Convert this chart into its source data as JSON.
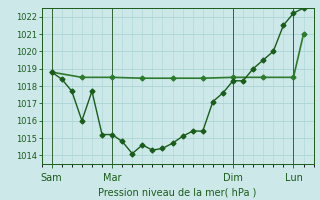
{
  "title": "",
  "xlabel": "Pression niveau de la mer( hPa )",
  "bg_color": "#cce8e8",
  "grid_color": "#aad4d4",
  "line_color_main": "#1a5c1a",
  "line_color_flat": "#2d7a2d",
  "ylim": [
    1013.5,
    1022.5
  ],
  "yticks": [
    1014,
    1015,
    1016,
    1017,
    1018,
    1019,
    1020,
    1021,
    1022
  ],
  "xlim": [
    0,
    27
  ],
  "day_positions": [
    1,
    7,
    19,
    25
  ],
  "day_labels": [
    "Sam",
    "Mar",
    "Dim",
    "Lun"
  ],
  "series1_x": [
    1,
    2,
    3,
    4,
    5,
    6,
    7,
    8,
    9,
    10,
    11,
    12,
    13,
    14,
    15,
    16,
    17,
    18,
    19,
    20,
    21,
    22,
    23,
    24,
    25,
    26
  ],
  "series1_y": [
    1018.8,
    1018.4,
    1017.7,
    1016.0,
    1017.7,
    1015.2,
    1015.2,
    1014.8,
    1014.1,
    1014.6,
    1014.3,
    1014.4,
    1014.7,
    1015.1,
    1015.4,
    1015.4,
    1017.1,
    1017.6,
    1018.3,
    1018.3,
    1019.0,
    1019.5,
    1020.0,
    1021.5,
    1022.2,
    1022.5
  ],
  "series2_x": [
    1,
    4,
    7,
    10,
    13,
    16,
    19,
    22,
    25,
    26
  ],
  "series2_y": [
    1018.8,
    1018.5,
    1018.5,
    1018.45,
    1018.45,
    1018.45,
    1018.5,
    1018.5,
    1018.5,
    1021.0
  ],
  "marker": "D",
  "marker_size": 2.5,
  "linewidth1": 1.0,
  "linewidth2": 1.2,
  "tick_labelsize": 6,
  "xlabel_fontsize": 7,
  "xtick_labelsize": 7
}
